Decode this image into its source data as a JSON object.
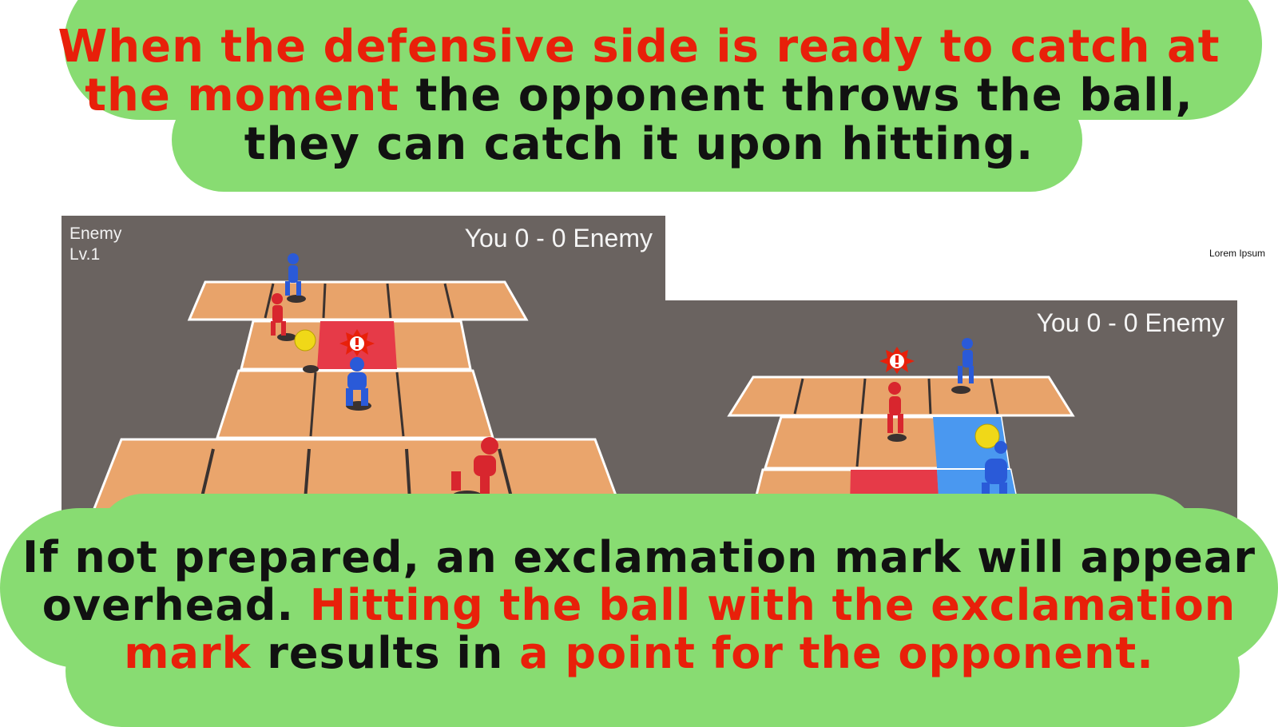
{
  "colors": {
    "caption_bubble": "#88dc72",
    "caption_red": "#e8200a",
    "caption_black": "#111111",
    "court_floor": "#e8a36a",
    "court_line": "#3a3230",
    "arena_bg": "#6a6360",
    "highlight_red": "#e63a48",
    "highlight_blue": "#4a98f0",
    "ball": "#f0d818",
    "player_red": "#d8262e",
    "player_blue": "#2a5ad8"
  },
  "top_caption": {
    "part1_red": "When the defensive side is ready to catch at the moment",
    "part2_black": " the opponent throws the ball, they can catch it upon hitting."
  },
  "bottom_caption": {
    "part1_black": "If not prepared, an exclamation mark will appear overhead. ",
    "part2_red": "Hitting the ball with the exclamation mark",
    "part3_black": " results in ",
    "part4_red": "a point for the opponent."
  },
  "left_screen": {
    "level_name": "Enemy",
    "level_value": "Lv.1",
    "score": "You 0 - 0 Enemy"
  },
  "right_screen": {
    "score": "You 0 - 0 Enemy"
  },
  "misc": {
    "small_caption": "Lorem Ipsum"
  }
}
